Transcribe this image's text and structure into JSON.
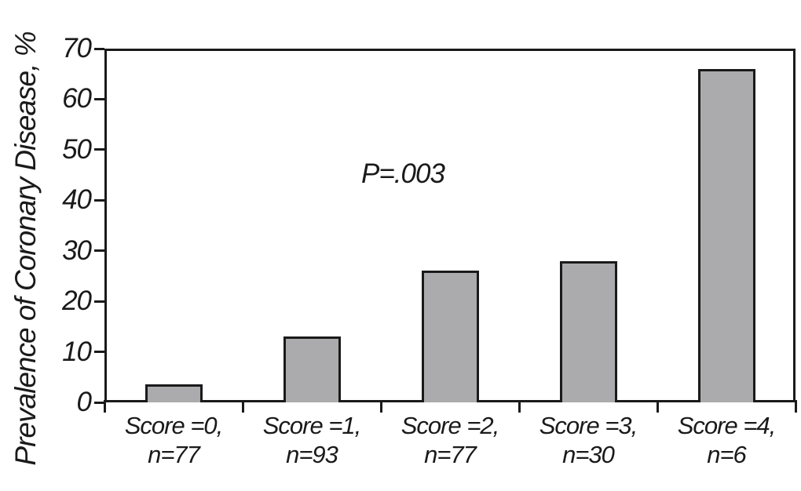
{
  "chart_data": {
    "type": "bar",
    "title": "",
    "ylabel": "Prevalence of Coronary Disease, %",
    "xlabel": "",
    "ylim": [
      0,
      70
    ],
    "yticks": [
      0,
      10,
      20,
      30,
      40,
      50,
      60,
      70
    ],
    "categories": [
      {
        "score_label": "Score =0,",
        "n_label": "n=77"
      },
      {
        "score_label": "Score =1,",
        "n_label": "n=93"
      },
      {
        "score_label": "Score =2,",
        "n_label": "n=77"
      },
      {
        "score_label": "Score =3,",
        "n_label": "n=30"
      },
      {
        "score_label": "Score =4,",
        "n_label": "n=6"
      }
    ],
    "values": [
      3.5,
      13,
      26,
      28,
      66
    ],
    "annotation": "P=.003",
    "grid": false,
    "legend_position": "none",
    "colors": {
      "bar_fill": "#ABABAD",
      "bar_border": "#1A1A1A",
      "axis": "#1A1A1A",
      "text": "#1A1A1A",
      "background": "#FFFFFF"
    }
  }
}
